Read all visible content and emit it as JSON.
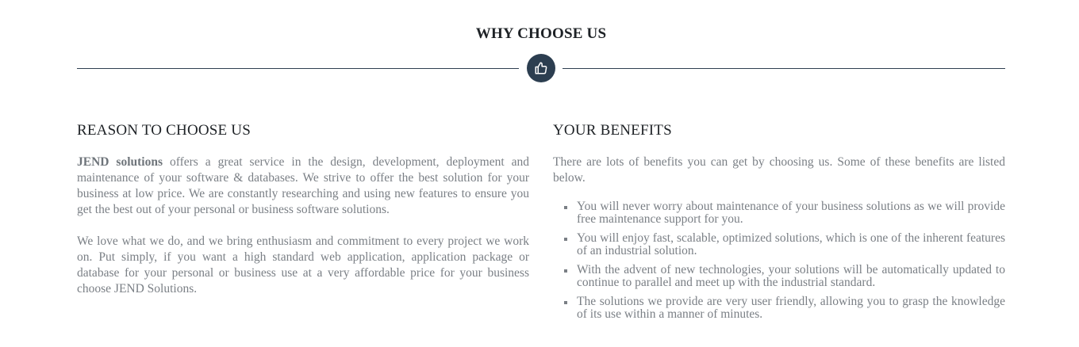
{
  "section": {
    "title": "WHY CHOOSE US",
    "divider_icon": "thumbs-up-icon"
  },
  "colors": {
    "accent": "#2c3e50",
    "heading": "#1e2226",
    "body_text": "#7a7f85"
  },
  "reasons": {
    "heading": "REASON TO CHOOSE US",
    "brand": "JEND solutions",
    "paragraph1_rest": " offers a great service in the design, development, deployment and maintenance of your software & databases. We strive to offer the best solution for your business at low price. We are constantly researching and using new features to ensure you get the best out of your personal or business software solutions.",
    "paragraph2": "We love what we do, and we bring enthusiasm and commitment to every project we work on. Put simply, if you want a high standard web application, application package or database for your personal or business use at a very affordable price for your business choose JEND Solutions."
  },
  "benefits": {
    "heading": "YOUR BENEFITS",
    "intro": "There are lots of benefits you can get by choosing us. Some of these benefits are listed below.",
    "items": [
      "You will never worry about maintenance of your business solutions as we will provide free maintenance support for you.",
      "You will enjoy fast, scalable, optimized solutions, which is one of the inherent features of an industrial solution.",
      "With the advent of new technologies, your solutions will be automatically updated to continue to parallel and meet up with the industrial standard.",
      "The solutions we provide are very user friendly, allowing you to grasp the knowledge of its use within a manner of minutes."
    ]
  }
}
